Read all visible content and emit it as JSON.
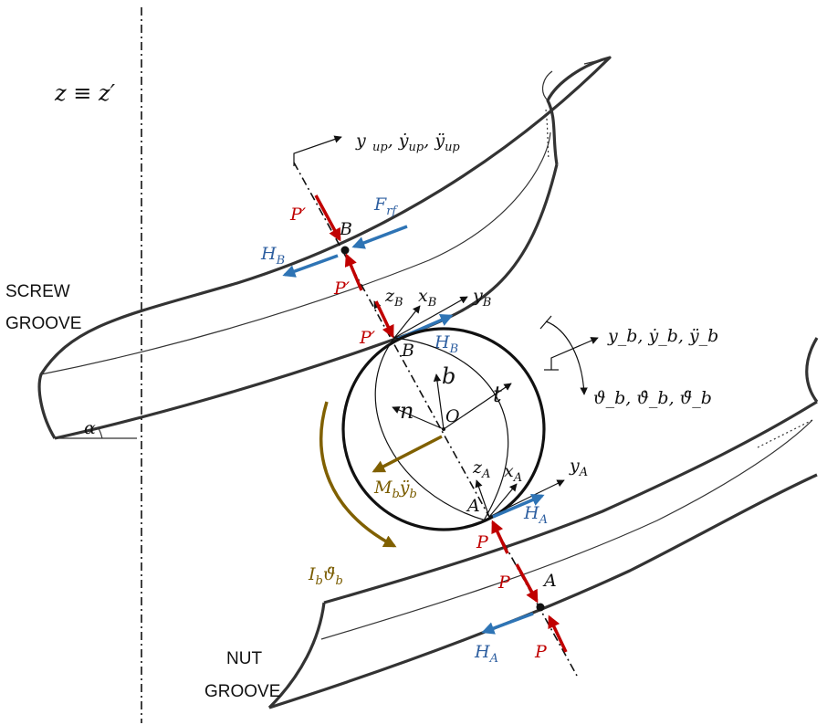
{
  "colors": {
    "outline": "#333333",
    "red_force": "#c00000",
    "blue_force": "#2e74b5",
    "olive_moment": "#806000",
    "text": "#111111"
  },
  "labels": {
    "axis_z": "z ≡ z′",
    "screw_groove_line1": "SCREW",
    "screw_groove_line2": "GROOVE",
    "nut_groove_line1": "NUT",
    "nut_groove_line2": "GROOVE",
    "alpha": "α",
    "upper_motion": "y",
    "upper_motion_sub": "up",
    "upper_motion_rest": ", ẏ",
    "upper_motion_rest2": ", ÿ",
    "ball_motion": "y_b, ẏ_b, ÿ_b",
    "ball_rotation": "ϑ_b, ϑ̇_b, ϑ̈_b",
    "point_b_top": "B",
    "point_b_contact": "B",
    "point_a_contact": "A",
    "point_a_bottom": "A",
    "center_o": "O",
    "frame_n": "n",
    "frame_b": "b",
    "frame_t": "t",
    "z_b": "z",
    "x_b": "x",
    "y_b": "y",
    "z_a": "z",
    "x_a": "x",
    "y_a": "y",
    "sub_b": "B",
    "sub_a": "A"
  },
  "forces": {
    "p_prime_top": "P′",
    "p_prime_mid": "P′",
    "p_prime_contact": "P′",
    "f_rf": "F",
    "f_rf_sub": "rf",
    "h_b_top": "H",
    "h_b_contact": "H",
    "h_a_contact": "H",
    "h_a_bottom": "H",
    "p_contact": "P",
    "p_mid": "P",
    "p_bottom": "P",
    "moment_m": "M",
    "moment_m_rest": "ÿ",
    "inertia_i": "I",
    "inertia_rest": "ϑ̈"
  }
}
